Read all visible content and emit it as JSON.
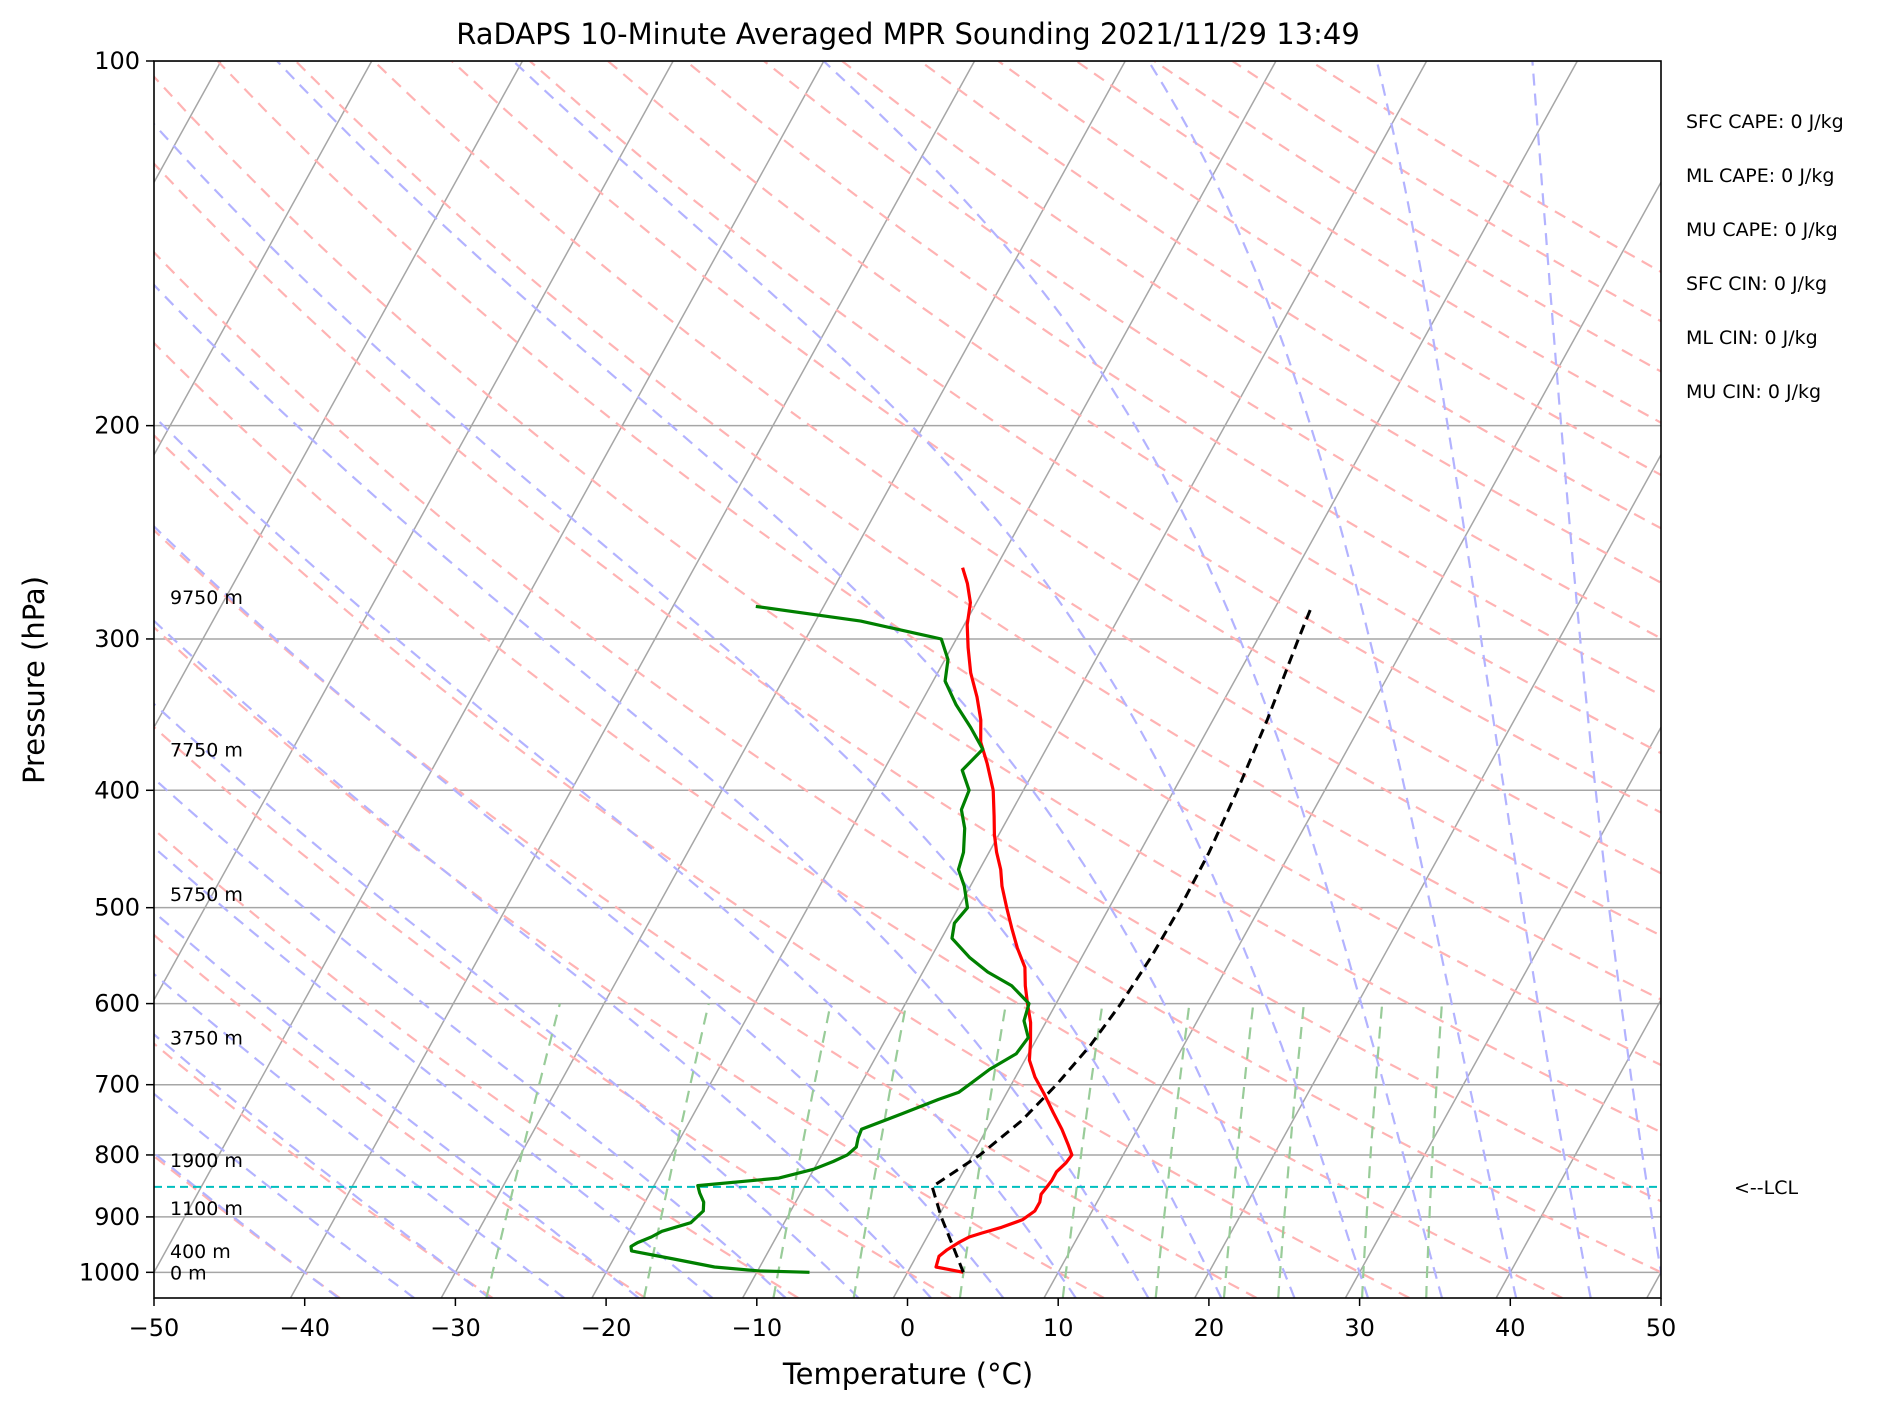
{
  "chart_data": {
    "type": "skew-t",
    "title": "RaDAPS 10-Minute Averaged MPR Sounding 2021/11/29 13:49",
    "xlabel": "Temperature (°C)",
    "ylabel": "Pressure (hPa)",
    "xlim": [
      -50,
      50
    ],
    "ylim": [
      1050,
      100
    ],
    "y_scale": "log",
    "grid": true,
    "x_ticks": [
      -50,
      -40,
      -30,
      -20,
      -10,
      0,
      10,
      20,
      30,
      40,
      50
    ],
    "y_ticks": [
      100,
      200,
      300,
      400,
      500,
      600,
      700,
      800,
      900,
      1000
    ],
    "height_labels": [
      {
        "text": "0 m",
        "pressure": 1000
      },
      {
        "text": "400 m",
        "pressure": 960
      },
      {
        "text": "1100 m",
        "pressure": 885
      },
      {
        "text": "1900 m",
        "pressure": 808
      },
      {
        "text": "3750 m",
        "pressure": 640
      },
      {
        "text": "5750 m",
        "pressure": 487
      },
      {
        "text": "7750 m",
        "pressure": 370
      },
      {
        "text": "9750 m",
        "pressure": 277
      }
    ],
    "indices": [
      "SFC CAPE: 0 J/kg",
      "ML CAPE: 0 J/kg",
      "MU CAPE: 0 J/kg",
      "SFC CIN: 0 J/kg",
      "ML CIN: 0 J/kg",
      "MU CIN: 0 J/kg"
    ],
    "lcl_label": "<--LCL",
    "lcl_pressure": 850,
    "colors": {
      "temperature": "#ff0000",
      "dewpoint": "#008000",
      "parcel": "#000000",
      "lcl": "#00bfbf",
      "isotherm": "#a6a6a6",
      "dry_adiabat": "#ffb3b3",
      "moist_adiabat": "#b3b3ff",
      "mixing_ratio": "#99cc99"
    },
    "series": [
      {
        "key": "temperature",
        "pressure": [
          1000,
          990,
          970,
          958,
          945,
          935,
          928,
          918,
          905,
          890,
          875,
          862,
          852,
          840,
          826,
          812,
          800,
          785,
          762,
          738,
          712,
          690,
          668,
          645,
          622,
          600,
          580,
          560,
          540,
          520,
          500,
          480,
          465,
          450,
          435,
          420,
          400,
          380,
          365,
          350,
          335,
          320,
          305,
          292,
          280,
          270,
          262
        ],
        "values": [
          3.7,
          1.7,
          1.5,
          1.8,
          2.3,
          2.8,
          3.5,
          4.6,
          5.7,
          6.2,
          6.2,
          6.0,
          6.1,
          6.2,
          6.2,
          6.5,
          6.6,
          6.0,
          5.0,
          3.8,
          2.5,
          1.3,
          0.3,
          -0.3,
          -1.0,
          -1.9,
          -2.7,
          -3.4,
          -4.6,
          -5.7,
          -6.8,
          -7.9,
          -8.6,
          -9.5,
          -10.3,
          -11.0,
          -12.0,
          -13.4,
          -14.6,
          -15.4,
          -16.5,
          -17.8,
          -18.9,
          -19.8,
          -20.4,
          -21.3,
          -22.2
        ]
      },
      {
        "key": "dewpoint",
        "pressure": [
          1000,
          997,
          990,
          975,
          960,
          952,
          945,
          935,
          925,
          910,
          890,
          875,
          860,
          848,
          836,
          822,
          810,
          800,
          788,
          775,
          762,
          740,
          720,
          710,
          700,
          680,
          660,
          640,
          620,
          600,
          580,
          565,
          550,
          530,
          515,
          500,
          480,
          465,
          450,
          430,
          415,
          400,
          385,
          370,
          355,
          340,
          325,
          312,
          300,
          290,
          282
        ],
        "values": [
          -6.5,
          -10.0,
          -13.0,
          -16.0,
          -19.1,
          -19.3,
          -19.0,
          -18.3,
          -17.8,
          -16.2,
          -15.8,
          -16.1,
          -16.7,
          -17.1,
          -12.0,
          -10.0,
          -9.0,
          -8.3,
          -8.0,
          -8.2,
          -8.3,
          -6.2,
          -4.3,
          -3.2,
          -2.8,
          -2.0,
          -0.8,
          -0.6,
          -1.5,
          -1.8,
          -3.6,
          -5.7,
          -7.4,
          -9.3,
          -9.7,
          -9.4,
          -10.4,
          -11.4,
          -11.7,
          -12.5,
          -13.4,
          -13.6,
          -14.8,
          -14.2,
          -15.8,
          -17.6,
          -19.2,
          -19.8,
          -21.0,
          -27.0,
          -34.5
        ]
      },
      {
        "key": "parcel",
        "pressure": [
          1000,
          950,
          900,
          850,
          800,
          750,
          700,
          650,
          600,
          550,
          500,
          450,
          400,
          350,
          300,
          283
        ],
        "values": [
          3.7,
          2.0,
          0.2,
          -1.5,
          0.5,
          2.0,
          3.0,
          3.8,
          4.3,
          4.6,
          4.7,
          4.6,
          4.2,
          3.6,
          2.7,
          2.4
        ]
      }
    ]
  }
}
